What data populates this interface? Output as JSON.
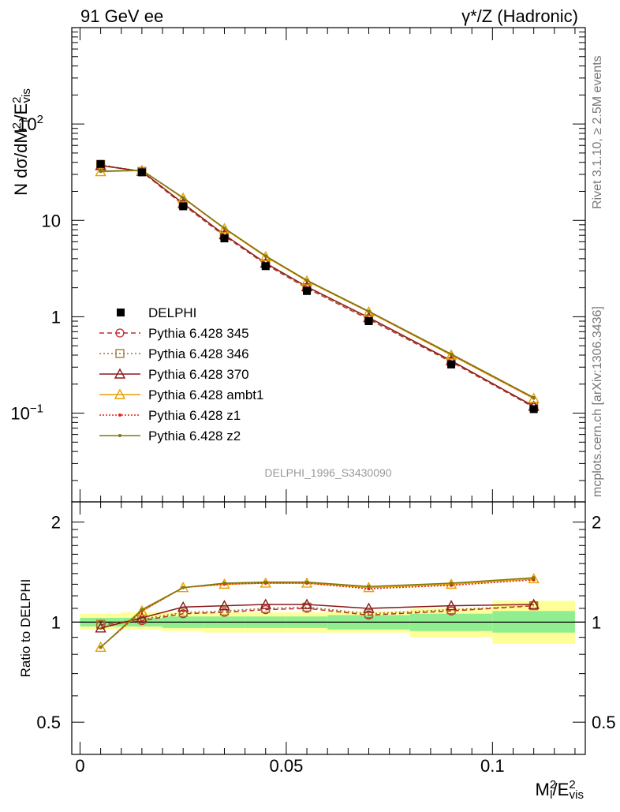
{
  "header": {
    "left_label": "91 GeV ee",
    "right_label": "γ*/Z (Hadronic)"
  },
  "side_labels": {
    "rivet": "Rivet 3.1.10, ≥ 2.5M events",
    "mcplots": "mcplots.cern.ch [arXiv:1306.3436]"
  },
  "watermark": "DELPHI_1996_S3430090",
  "colors": {
    "data": "#000000",
    "p345": "#c0282d",
    "p346": "#a0702a",
    "p370": "#8b1a1a",
    "ambt1": "#e6a000",
    "z1": "#e82010",
    "z2": "#7a7a10",
    "band_inner": "#90ee90",
    "band_outer": "#ffff99"
  },
  "chart_data": [
    {
      "type": "line",
      "panel": "main",
      "ylabel": "N dσ/dM²_l/E²_vis",
      "yscale": "log",
      "ylim": [
        0.012,
        1000
      ],
      "xlim": [
        -0.002,
        0.1225
      ],
      "yticks": [
        {
          "value": 100,
          "label": "10",
          "sup": "2"
        },
        {
          "value": 10,
          "label": "10",
          "sup": ""
        },
        {
          "value": 1,
          "label": "1",
          "sup": ""
        },
        {
          "value": 0.1,
          "label": "10",
          "sup": "−1"
        }
      ],
      "x": [
        0.005,
        0.015,
        0.025,
        0.035,
        0.045,
        0.055,
        0.07,
        0.09,
        0.11
      ],
      "data": {
        "name": "DELPHI",
        "values": [
          38.5,
          31.5,
          14.0,
          6.5,
          3.35,
          1.85,
          0.9,
          0.32,
          0.11
        ]
      },
      "series": [
        {
          "name": "Pythia 6.428 345",
          "color_key": "p345",
          "marker": "circle",
          "dash": "6,4",
          "values": [
            37.5,
            32.0,
            14.5,
            6.9,
            3.5,
            1.98,
            0.94,
            0.34,
            0.115
          ]
        },
        {
          "name": "Pythia 6.428 346",
          "color_key": "p346",
          "marker": "square",
          "dash": "2,3",
          "values": [
            37.8,
            32.2,
            14.6,
            7.0,
            3.55,
            2.0,
            0.95,
            0.345,
            0.116
          ]
        },
        {
          "name": "Pythia 6.428 370",
          "color_key": "p370",
          "marker": "triangle",
          "dash": "",
          "values": [
            37.0,
            32.3,
            15.0,
            7.1,
            3.6,
            2.05,
            0.98,
            0.35,
            0.118
          ]
        },
        {
          "name": "Pythia 6.428 ambt1",
          "color_key": "ambt1",
          "marker": "triangle",
          "dash": "",
          "values": [
            32.0,
            33.0,
            17.0,
            8.2,
            4.2,
            2.35,
            1.12,
            0.4,
            0.142
          ]
        },
        {
          "name": "Pythia 6.428 z1",
          "color_key": "z1",
          "marker": "dot",
          "dash": "2,2",
          "values": [
            32.2,
            33.1,
            17.1,
            8.25,
            4.25,
            2.37,
            1.13,
            0.405,
            0.143
          ]
        },
        {
          "name": "Pythia 6.428 z2",
          "color_key": "z2",
          "marker": "dot",
          "dash": "",
          "values": [
            32.4,
            33.2,
            17.2,
            8.3,
            4.28,
            2.39,
            1.14,
            0.41,
            0.145
          ]
        }
      ]
    },
    {
      "type": "line",
      "panel": "ratio",
      "ylabel": "Ratio to DELPHI",
      "xlabel": "M²_l/E²_vis",
      "ylim": [
        0.4,
        2.3
      ],
      "xlim": [
        -0.002,
        0.1225
      ],
      "yticks": [
        0.5,
        1,
        2
      ],
      "xticks": [
        {
          "value": 0,
          "label": "0"
        },
        {
          "value": 0.05,
          "label": "0.05"
        },
        {
          "value": 0.1,
          "label": "0.1"
        }
      ],
      "bins": [
        {
          "lo": 0.0,
          "hi": 0.01,
          "inner": [
            0.97,
            1.03
          ],
          "outer": [
            0.95,
            1.06
          ]
        },
        {
          "lo": 0.01,
          "hi": 0.02,
          "inner": [
            0.97,
            1.03
          ],
          "outer": [
            0.95,
            1.07
          ]
        },
        {
          "lo": 0.02,
          "hi": 0.03,
          "inner": [
            0.96,
            1.04
          ],
          "outer": [
            0.94,
            1.07
          ]
        },
        {
          "lo": 0.03,
          "hi": 0.04,
          "inner": [
            0.96,
            1.04
          ],
          "outer": [
            0.93,
            1.07
          ]
        },
        {
          "lo": 0.04,
          "hi": 0.05,
          "inner": [
            0.96,
            1.04
          ],
          "outer": [
            0.93,
            1.07
          ]
        },
        {
          "lo": 0.05,
          "hi": 0.06,
          "inner": [
            0.96,
            1.04
          ],
          "outer": [
            0.93,
            1.07
          ]
        },
        {
          "lo": 0.06,
          "hi": 0.08,
          "inner": [
            0.95,
            1.05
          ],
          "outer": [
            0.93,
            1.08
          ]
        },
        {
          "lo": 0.08,
          "hi": 0.1,
          "inner": [
            0.94,
            1.06
          ],
          "outer": [
            0.9,
            1.1
          ]
        },
        {
          "lo": 0.1,
          "hi": 0.12,
          "inner": [
            0.93,
            1.08
          ],
          "outer": [
            0.86,
            1.16
          ]
        }
      ],
      "series": [
        {
          "name": "Pythia 6.428 345",
          "color_key": "p345",
          "marker": "circle",
          "dash": "6,4",
          "values": [
            0.98,
            1.01,
            1.06,
            1.07,
            1.09,
            1.1,
            1.05,
            1.08,
            1.12
          ]
        },
        {
          "name": "Pythia 6.428 346",
          "color_key": "p346",
          "marker": "square",
          "dash": "2,3",
          "values": [
            0.985,
            1.02,
            1.07,
            1.08,
            1.1,
            1.11,
            1.06,
            1.09,
            1.12
          ]
        },
        {
          "name": "Pythia 6.428 370",
          "color_key": "p370",
          "marker": "triangle",
          "dash": "",
          "values": [
            0.96,
            1.03,
            1.11,
            1.12,
            1.13,
            1.13,
            1.1,
            1.12,
            1.13
          ]
        },
        {
          "name": "Pythia 6.428 ambt1",
          "color_key": "ambt1",
          "marker": "triangle",
          "dash": "",
          "values": [
            0.84,
            1.08,
            1.27,
            1.3,
            1.31,
            1.31,
            1.27,
            1.3,
            1.35
          ]
        },
        {
          "name": "Pythia 6.428 z1",
          "color_key": "z1",
          "marker": "dot",
          "dash": "2,2",
          "values": [
            0.84,
            1.08,
            1.27,
            1.3,
            1.31,
            1.31,
            1.26,
            1.29,
            1.34
          ]
        },
        {
          "name": "Pythia 6.428 z2",
          "color_key": "z2",
          "marker": "dot",
          "dash": "",
          "values": [
            0.84,
            1.09,
            1.27,
            1.31,
            1.32,
            1.32,
            1.28,
            1.31,
            1.36
          ]
        }
      ]
    }
  ]
}
